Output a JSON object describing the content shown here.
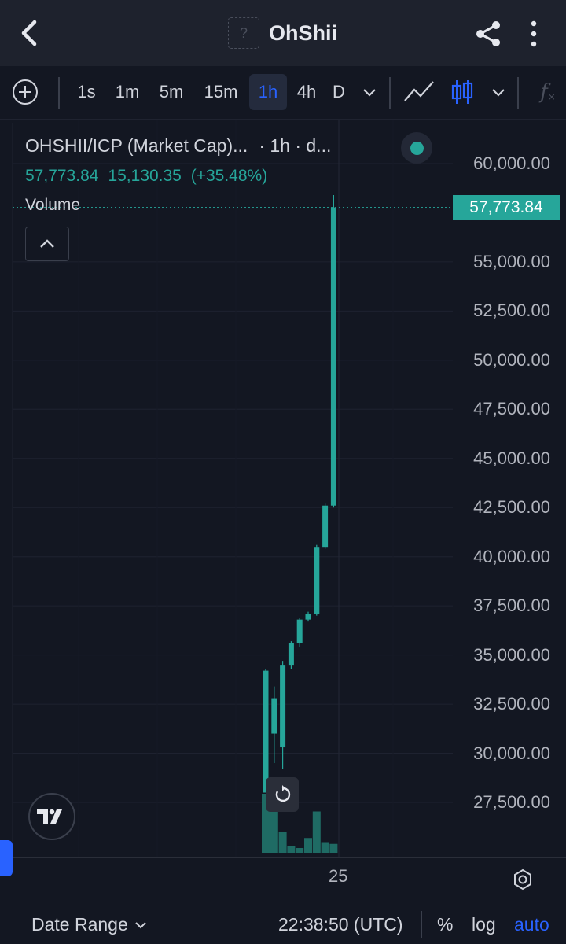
{
  "header": {
    "title": "OhShii",
    "token_icon_glyph": "?"
  },
  "toolbar": {
    "intervals": [
      "1s",
      "1m",
      "5m",
      "15m",
      "1h",
      "4h",
      "D"
    ],
    "active_interval": "1h"
  },
  "legend": {
    "title": "OHSHII/ICP (Market Cap)...",
    "interval_suffix": "· 1h · d...",
    "last_value": "57,773.84",
    "change": "15,130.35",
    "change_pct": "(+35.48%)",
    "volume_label": "Volume",
    "status_color": "#26a69a"
  },
  "price_scale": {
    "labels": [
      "60,000.00",
      "55,000.00",
      "52,500.00",
      "50,000.00",
      "47,500.00",
      "45,000.00",
      "42,500.00",
      "40,000.00",
      "37,500.00",
      "35,000.00",
      "32,500.00",
      "30,000.00",
      "27,500.00"
    ],
    "current_price_label": "57,773.84"
  },
  "time_axis": {
    "labels": [
      "25"
    ]
  },
  "bottom": {
    "date_range": "Date Range",
    "clock": "22:38:50 (UTC)",
    "percent": "%",
    "log": "log",
    "auto": "auto"
  },
  "colors": {
    "up": "#26a69a",
    "volume": "#1f6b64",
    "accent": "#2962ff",
    "background": "#131722"
  },
  "chart_data": {
    "type": "candlestick",
    "title": "OHSHII/ICP (Market Cap)",
    "ylim": [
      25000,
      62000
    ],
    "last": 57773.84,
    "candles": [
      {
        "o": 28000,
        "h": 34300,
        "l": 28000,
        "c": 34200
      },
      {
        "o": 31000,
        "h": 33400,
        "l": 29500,
        "c": 32800
      },
      {
        "o": 30300,
        "h": 34700,
        "l": 29200,
        "c": 34500
      },
      {
        "o": 34500,
        "h": 35700,
        "l": 34300,
        "c": 35600
      },
      {
        "o": 35600,
        "h": 36900,
        "l": 35400,
        "c": 36800
      },
      {
        "o": 36800,
        "h": 37200,
        "l": 36700,
        "c": 37100
      },
      {
        "o": 37100,
        "h": 40600,
        "l": 37000,
        "c": 40500
      },
      {
        "o": 40500,
        "h": 42700,
        "l": 40400,
        "c": 42600
      },
      {
        "o": 42600,
        "h": 58400,
        "l": 42500,
        "c": 57773.84
      }
    ],
    "volume": [
      100,
      70,
      35,
      12,
      8,
      25,
      70,
      18,
      15
    ]
  }
}
